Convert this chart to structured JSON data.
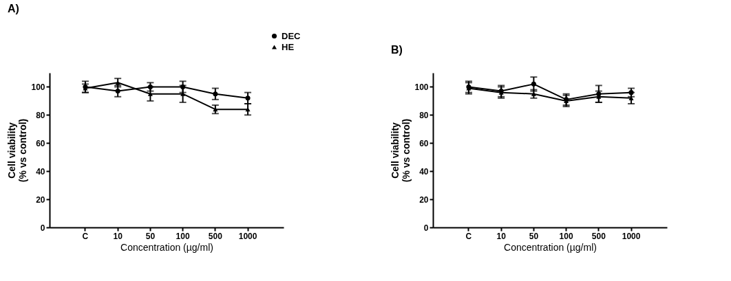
{
  "chart_data": [
    {
      "type": "line",
      "title": "A)",
      "xlabel": "Concentration (µg/ml)",
      "ylabel": "Cell viability\n(% vs control)",
      "categories": [
        "C",
        "10",
        "50",
        "100",
        "500",
        "1000"
      ],
      "ylim": [
        0,
        110
      ],
      "yticks": [
        0,
        20,
        40,
        60,
        80,
        100
      ],
      "grid": false,
      "legend": "top right",
      "line_style": "solid",
      "series": [
        {
          "name": "DEC",
          "color": "#000000",
          "marker": "circle",
          "values": [
            100,
            97,
            100,
            100,
            95,
            92
          ],
          "errors": [
            4,
            4,
            3,
            4,
            4,
            4
          ]
        },
        {
          "name": "HE",
          "color": "#000000",
          "marker": "triangle",
          "values": [
            99,
            103,
            95,
            95,
            84,
            84
          ],
          "errors": [
            3,
            3,
            5,
            6,
            3,
            4
          ]
        }
      ]
    },
    {
      "type": "line",
      "title": "B)",
      "xlabel": "Concentration (µg/ml)",
      "ylabel": "Cell viability\n(% vs control)",
      "categories": [
        "C",
        "10",
        "50",
        "100",
        "500",
        "1000"
      ],
      "ylim": [
        0,
        110
      ],
      "yticks": [
        0,
        20,
        40,
        60,
        80,
        100
      ],
      "grid": false,
      "legend": false,
      "line_style": "solid",
      "series": [
        {
          "color": "#000000",
          "marker": "circle",
          "values": [
            100,
            97,
            102,
            91,
            95,
            96
          ],
          "errors": [
            4,
            4,
            5,
            4,
            6,
            3
          ]
        },
        {
          "color": "#000000",
          "marker": "triangle",
          "values": [
            99,
            96,
            95,
            90,
            93,
            92
          ],
          "errors": [
            4,
            4,
            3,
            4,
            4,
            4
          ]
        }
      ]
    }
  ]
}
